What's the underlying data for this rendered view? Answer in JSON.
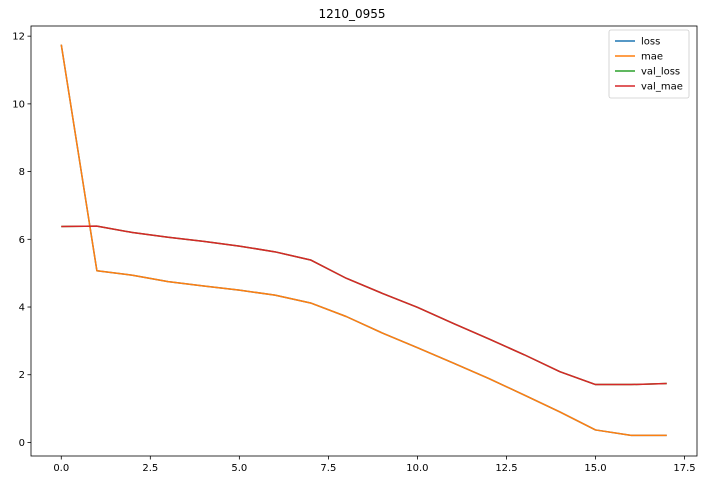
{
  "chart_data": {
    "type": "line",
    "title": "1210_0955",
    "xlabel": "",
    "ylabel": "",
    "xlim": [
      -0.85,
      17.85
    ],
    "ylim": [
      -0.4,
      12.3
    ],
    "xticks": [
      0.0,
      2.5,
      5.0,
      7.5,
      10.0,
      12.5,
      15.0,
      17.5
    ],
    "xtick_labels": [
      "0.0",
      "2.5",
      "5.0",
      "7.5",
      "10.0",
      "12.5",
      "15.0",
      "17.5"
    ],
    "yticks": [
      0,
      2,
      4,
      6,
      8,
      10,
      12
    ],
    "ytick_labels": [
      "0",
      "2",
      "4",
      "6",
      "8",
      "10",
      "12"
    ],
    "grid": false,
    "legend_position": "top-right",
    "x": [
      0,
      1,
      2,
      3,
      4,
      5,
      6,
      7,
      8,
      9,
      10,
      11,
      12,
      13,
      14,
      15,
      16,
      17
    ],
    "series": [
      {
        "name": "loss",
        "color": "#1f77b4",
        "values": [
          11.75,
          5.07,
          4.94,
          4.75,
          4.62,
          4.5,
          4.35,
          4.12,
          3.72,
          3.24,
          2.8,
          2.35,
          1.89,
          1.4,
          0.9,
          0.37,
          0.21,
          0.21
        ]
      },
      {
        "name": "mae",
        "color": "#ff7f0e",
        "values": [
          11.75,
          5.07,
          4.94,
          4.75,
          4.62,
          4.5,
          4.35,
          4.12,
          3.72,
          3.24,
          2.8,
          2.35,
          1.89,
          1.4,
          0.9,
          0.37,
          0.21,
          0.21
        ]
      },
      {
        "name": "val_loss",
        "color": "#2ca02c",
        "values": [
          6.38,
          6.39,
          6.2,
          6.06,
          5.94,
          5.8,
          5.63,
          5.39,
          4.85,
          4.41,
          3.99,
          3.52,
          3.06,
          2.59,
          2.09,
          1.71,
          1.71,
          1.74
        ]
      },
      {
        "name": "val_mae",
        "color": "#d62728",
        "values": [
          6.38,
          6.39,
          6.2,
          6.06,
          5.94,
          5.8,
          5.63,
          5.39,
          4.85,
          4.41,
          3.99,
          3.52,
          3.06,
          2.59,
          2.09,
          1.71,
          1.71,
          1.74
        ]
      }
    ]
  }
}
